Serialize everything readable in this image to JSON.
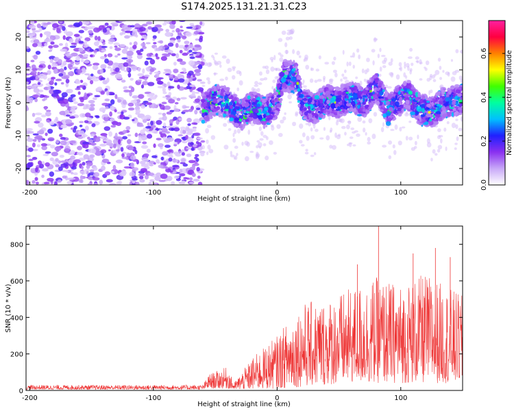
{
  "title": "S174.2025.131.21.31.C23",
  "colors": {
    "snr_line": "#ee3333",
    "low_noise": "#7a2cf0"
  },
  "chart_data": [
    {
      "type": "heatmap",
      "xlabel": "Height of straight line (km)",
      "ylabel": "Frequency (Hz)",
      "xlim": [
        -203,
        150
      ],
      "ylim": [
        -25,
        25
      ],
      "xticks": [
        "-200",
        "-100",
        "0",
        "100"
      ],
      "xtick_values": [
        -200,
        -100,
        0,
        100
      ],
      "yticks": [
        "-20",
        "-10",
        "0",
        "10",
        "20"
      ],
      "ytick_values": [
        -20,
        -10,
        0,
        10,
        20
      ],
      "colorbar": {
        "label": "Normalized spectral amplitude",
        "ticks": [
          "0.0",
          "0.2",
          "0.4",
          "0.6"
        ],
        "tick_values": [
          0,
          0.2,
          0.4,
          0.6
        ],
        "range": [
          0,
          0.75
        ],
        "colormap": [
          "#ffffff",
          "#c8a8f8",
          "#8a30f0",
          "#2020ff",
          "#00c0ff",
          "#00ffa0",
          "#40ff00",
          "#ffff00",
          "#ff8000",
          "#ff0040",
          "#ff20a0"
        ]
      },
      "noise_region_x": [
        -203,
        -60
      ],
      "signal_band": [
        {
          "x": -60,
          "f": -2
        },
        {
          "x": -50,
          "f": 1
        },
        {
          "x": -40,
          "f": 0
        },
        {
          "x": -30,
          "f": -4
        },
        {
          "x": -20,
          "f": -1
        },
        {
          "x": -10,
          "f": -3
        },
        {
          "x": 0,
          "f": 0
        },
        {
          "x": 5,
          "f": 8
        },
        {
          "x": 15,
          "f": 8
        },
        {
          "x": 20,
          "f": 0
        },
        {
          "x": 30,
          "f": -2
        },
        {
          "x": 40,
          "f": 1
        },
        {
          "x": 50,
          "f": 0
        },
        {
          "x": 60,
          "f": 2
        },
        {
          "x": 70,
          "f": 0
        },
        {
          "x": 80,
          "f": 5
        },
        {
          "x": 90,
          "f": -2
        },
        {
          "x": 100,
          "f": 1
        },
        {
          "x": 105,
          "f": 3
        },
        {
          "x": 115,
          "f": -2
        },
        {
          "x": 125,
          "f": -3
        },
        {
          "x": 135,
          "f": 0
        },
        {
          "x": 150,
          "f": 1
        }
      ]
    },
    {
      "type": "line",
      "xlabel": "Height of straight line (km)",
      "ylabel": "SNR (10 * v/v)",
      "xlim": [
        -203,
        150
      ],
      "ylim": [
        0,
        900
      ],
      "xticks": [
        "-200",
        "-100",
        "0",
        "100"
      ],
      "xtick_values": [
        -200,
        -100,
        0,
        100
      ],
      "yticks": [
        "0",
        "200",
        "400",
        "600",
        "800"
      ],
      "ytick_values": [
        0,
        200,
        400,
        600,
        800
      ],
      "envelope": [
        {
          "x": -203,
          "min": 5,
          "max": 30
        },
        {
          "x": -60,
          "min": 5,
          "max": 30
        },
        {
          "x": -55,
          "min": 10,
          "max": 90
        },
        {
          "x": -40,
          "min": 10,
          "max": 130
        },
        {
          "x": -35,
          "min": 5,
          "max": 40
        },
        {
          "x": -20,
          "min": 5,
          "max": 180
        },
        {
          "x": 0,
          "min": 10,
          "max": 300
        },
        {
          "x": 20,
          "min": 20,
          "max": 480
        },
        {
          "x": 40,
          "min": 30,
          "max": 500
        },
        {
          "x": 60,
          "min": 40,
          "max": 560
        },
        {
          "x": 80,
          "min": 40,
          "max": 620
        },
        {
          "x": 100,
          "min": 40,
          "max": 580
        },
        {
          "x": 120,
          "min": 40,
          "max": 640
        },
        {
          "x": 150,
          "min": 40,
          "max": 520
        }
      ],
      "peaks": [
        {
          "x": 82,
          "y": 900
        },
        {
          "x": 65,
          "y": 690
        },
        {
          "x": 110,
          "y": 750
        },
        {
          "x": 128,
          "y": 780
        },
        {
          "x": 140,
          "y": 730
        }
      ]
    }
  ]
}
